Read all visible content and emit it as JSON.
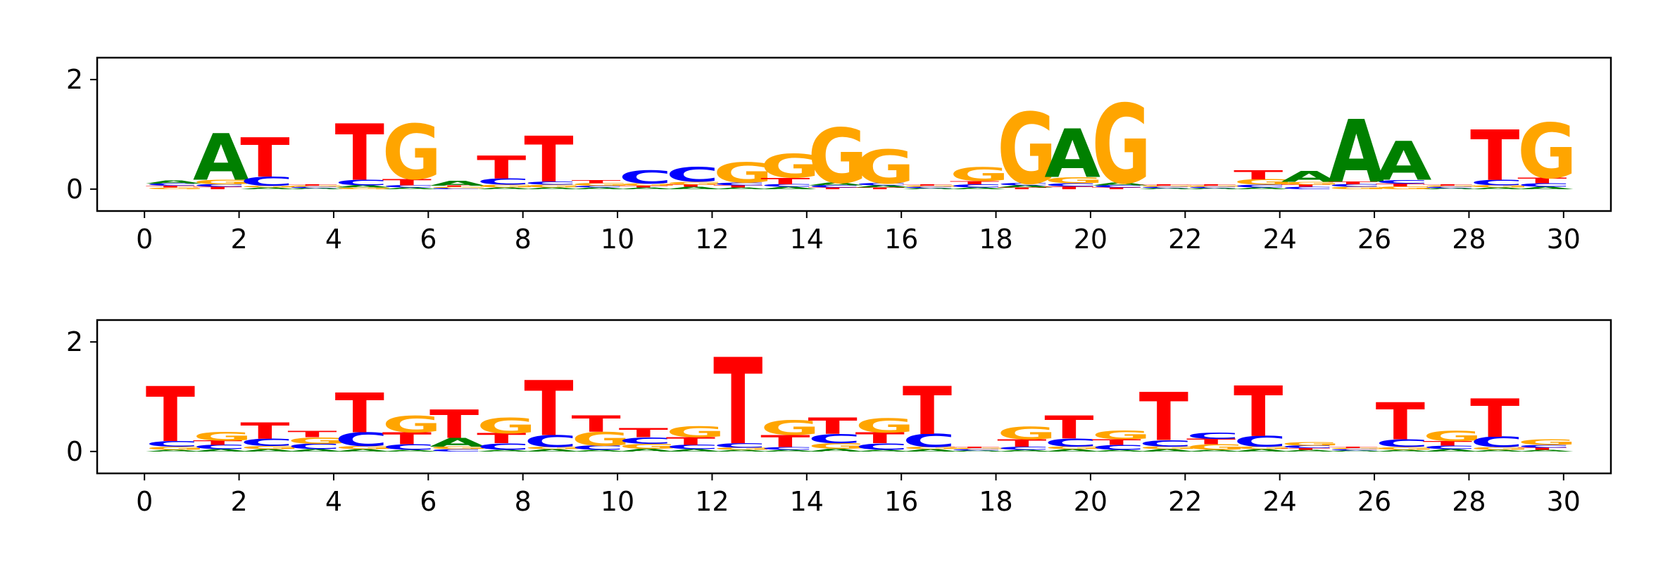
{
  "colors": {
    "A": "#008000",
    "C": "#0000ff",
    "G": "#ffa500",
    "T": "#ff0000",
    "axis": "#000000"
  },
  "chart_data": [
    {
      "type": "sequence-logo",
      "x_ticks": [
        "0",
        "2",
        "4",
        "6",
        "8",
        "10",
        "12",
        "14",
        "16",
        "18",
        "20",
        "22",
        "24",
        "26",
        "28",
        "30"
      ],
      "y_ticks": [
        "0",
        "2"
      ],
      "xlim": [
        -1,
        31
      ],
      "ylim": [
        -0.4,
        2.4
      ],
      "positions": [
        {
          "A": 0.06,
          "C": 0.04,
          "G": 0.03,
          "T": 0.03
        },
        {
          "A": 0.85,
          "C": 0.05,
          "G": 0.08,
          "T": 0.04
        },
        {
          "A": 0.03,
          "C": 0.17,
          "G": 0.03,
          "T": 0.72
        },
        {
          "A": 0.02,
          "C": 0.02,
          "G": 0.02,
          "T": 0.02
        },
        {
          "A": 0.04,
          "C": 0.1,
          "G": 0.03,
          "T": 1.03
        },
        {
          "A": 0.03,
          "C": 0.04,
          "G": 1.0,
          "T": 0.12
        },
        {
          "A": 0.09,
          "C": 0.02,
          "G": 0.02,
          "T": 0.02
        },
        {
          "A": 0.03,
          "C": 0.12,
          "G": 0.05,
          "T": 0.42
        },
        {
          "A": 0.03,
          "C": 0.06,
          "G": 0.05,
          "T": 0.84
        },
        {
          "A": 0.03,
          "C": 0.03,
          "G": 0.05,
          "T": 0.06
        },
        {
          "A": 0.03,
          "C": 0.24,
          "G": 0.04,
          "T": 0.03
        },
        {
          "A": 0.04,
          "C": 0.27,
          "G": 0.05,
          "T": 0.04
        },
        {
          "A": 0.03,
          "C": 0.05,
          "G": 0.37,
          "T": 0.04
        },
        {
          "A": 0.04,
          "C": 0.05,
          "G": 0.43,
          "T": 0.12
        },
        {
          "A": 0.05,
          "C": 0.04,
          "G": 1.0,
          "T": 0.03
        },
        {
          "A": 0.04,
          "C": 0.04,
          "G": 0.62,
          "T": 0.03
        },
        {
          "A": 0.02,
          "C": 0.02,
          "G": 0.02,
          "T": 0.02
        },
        {
          "A": 0.03,
          "C": 0.06,
          "G": 0.25,
          "T": 0.06
        },
        {
          "A": 0.04,
          "C": 0.04,
          "G": 1.3,
          "T": 0.03
        },
        {
          "A": 0.89,
          "C": 0.06,
          "G": 0.11,
          "T": 0.05
        },
        {
          "A": 0.05,
          "C": 0.04,
          "G": 1.45,
          "T": 0.03
        },
        {
          "A": 0.02,
          "C": 0.02,
          "G": 0.02,
          "T": 0.02
        },
        {
          "A": 0.02,
          "C": 0.02,
          "G": 0.02,
          "T": 0.02
        },
        {
          "A": 0.03,
          "C": 0.05,
          "G": 0.1,
          "T": 0.17
        },
        {
          "A": 0.2,
          "C": 0.04,
          "G": 0.05,
          "T": 0.04
        },
        {
          "A": 1.15,
          "C": 0.05,
          "G": 0.04,
          "T": 0.05
        },
        {
          "A": 0.71,
          "C": 0.07,
          "G": 0.05,
          "T": 0.05
        },
        {
          "A": 0.02,
          "C": 0.02,
          "G": 0.02,
          "T": 0.02
        },
        {
          "A": 0.03,
          "C": 0.1,
          "G": 0.04,
          "T": 0.92
        },
        {
          "A": 0.04,
          "C": 0.07,
          "G": 1.0,
          "T": 0.1
        }
      ]
    },
    {
      "type": "sequence-logo",
      "x_ticks": [
        "0",
        "2",
        "4",
        "6",
        "8",
        "10",
        "12",
        "14",
        "16",
        "18",
        "20",
        "22",
        "24",
        "26",
        "28",
        "30"
      ],
      "y_ticks": [
        "0",
        "2"
      ],
      "xlim": [
        -1,
        31
      ],
      "ylim": [
        -0.4,
        2.4
      ],
      "positions": [
        {
          "A": 0.03,
          "C": 0.1,
          "G": 0.06,
          "T": 1.0
        },
        {
          "A": 0.04,
          "C": 0.08,
          "G": 0.16,
          "T": 0.08
        },
        {
          "A": 0.04,
          "C": 0.13,
          "G": 0.06,
          "T": 0.3
        },
        {
          "A": 0.04,
          "C": 0.1,
          "G": 0.12,
          "T": 0.12
        },
        {
          "A": 0.04,
          "C": 0.25,
          "G": 0.06,
          "T": 0.73
        },
        {
          "A": 0.03,
          "C": 0.1,
          "G": 0.3,
          "T": 0.22
        },
        {
          "A": 0.16,
          "C": 0.04,
          "G": 0.05,
          "T": 0.52
        },
        {
          "A": 0.03,
          "C": 0.12,
          "G": 0.28,
          "T": 0.18
        },
        {
          "A": 0.04,
          "C": 0.22,
          "G": 0.04,
          "T": 1.0
        },
        {
          "A": 0.03,
          "C": 0.08,
          "G": 0.25,
          "T": 0.3
        },
        {
          "A": 0.05,
          "C": 0.12,
          "G": 0.09,
          "T": 0.17
        },
        {
          "A": 0.04,
          "C": 0.08,
          "G": 0.2,
          "T": 0.14
        },
        {
          "A": 0.03,
          "C": 0.08,
          "G": 0.04,
          "T": 1.58
        },
        {
          "A": 0.03,
          "C": 0.05,
          "G": 0.27,
          "T": 0.22
        },
        {
          "A": 0.05,
          "C": 0.17,
          "G": 0.1,
          "T": 0.3
        },
        {
          "A": 0.03,
          "C": 0.12,
          "G": 0.26,
          "T": 0.2
        },
        {
          "A": 0.04,
          "C": 0.24,
          "G": 0.04,
          "T": 0.88
        },
        {
          "A": 0.02,
          "C": 0.02,
          "G": 0.02,
          "T": 0.02
        },
        {
          "A": 0.03,
          "C": 0.06,
          "G": 0.23,
          "T": 0.13
        },
        {
          "A": 0.04,
          "C": 0.15,
          "G": 0.05,
          "T": 0.42
        },
        {
          "A": 0.03,
          "C": 0.09,
          "G": 0.16,
          "T": 0.1
        },
        {
          "A": 0.04,
          "C": 0.12,
          "G": 0.05,
          "T": 0.88
        },
        {
          "A": 0.03,
          "C": 0.12,
          "G": 0.1,
          "T": 0.1
        },
        {
          "A": 0.04,
          "C": 0.2,
          "G": 0.05,
          "T": 0.92
        },
        {
          "A": 0.03,
          "C": 0.05,
          "G": 0.07,
          "T": 0.03
        },
        {
          "A": 0.02,
          "C": 0.02,
          "G": 0.02,
          "T": 0.02
        },
        {
          "A": 0.03,
          "C": 0.14,
          "G": 0.05,
          "T": 0.68
        },
        {
          "A": 0.04,
          "C": 0.07,
          "G": 0.18,
          "T": 0.08
        },
        {
          "A": 0.03,
          "C": 0.19,
          "G": 0.05,
          "T": 0.7
        },
        {
          "A": 0.03,
          "C": 0.05,
          "G": 0.1,
          "T": 0.04
        }
      ]
    }
  ]
}
